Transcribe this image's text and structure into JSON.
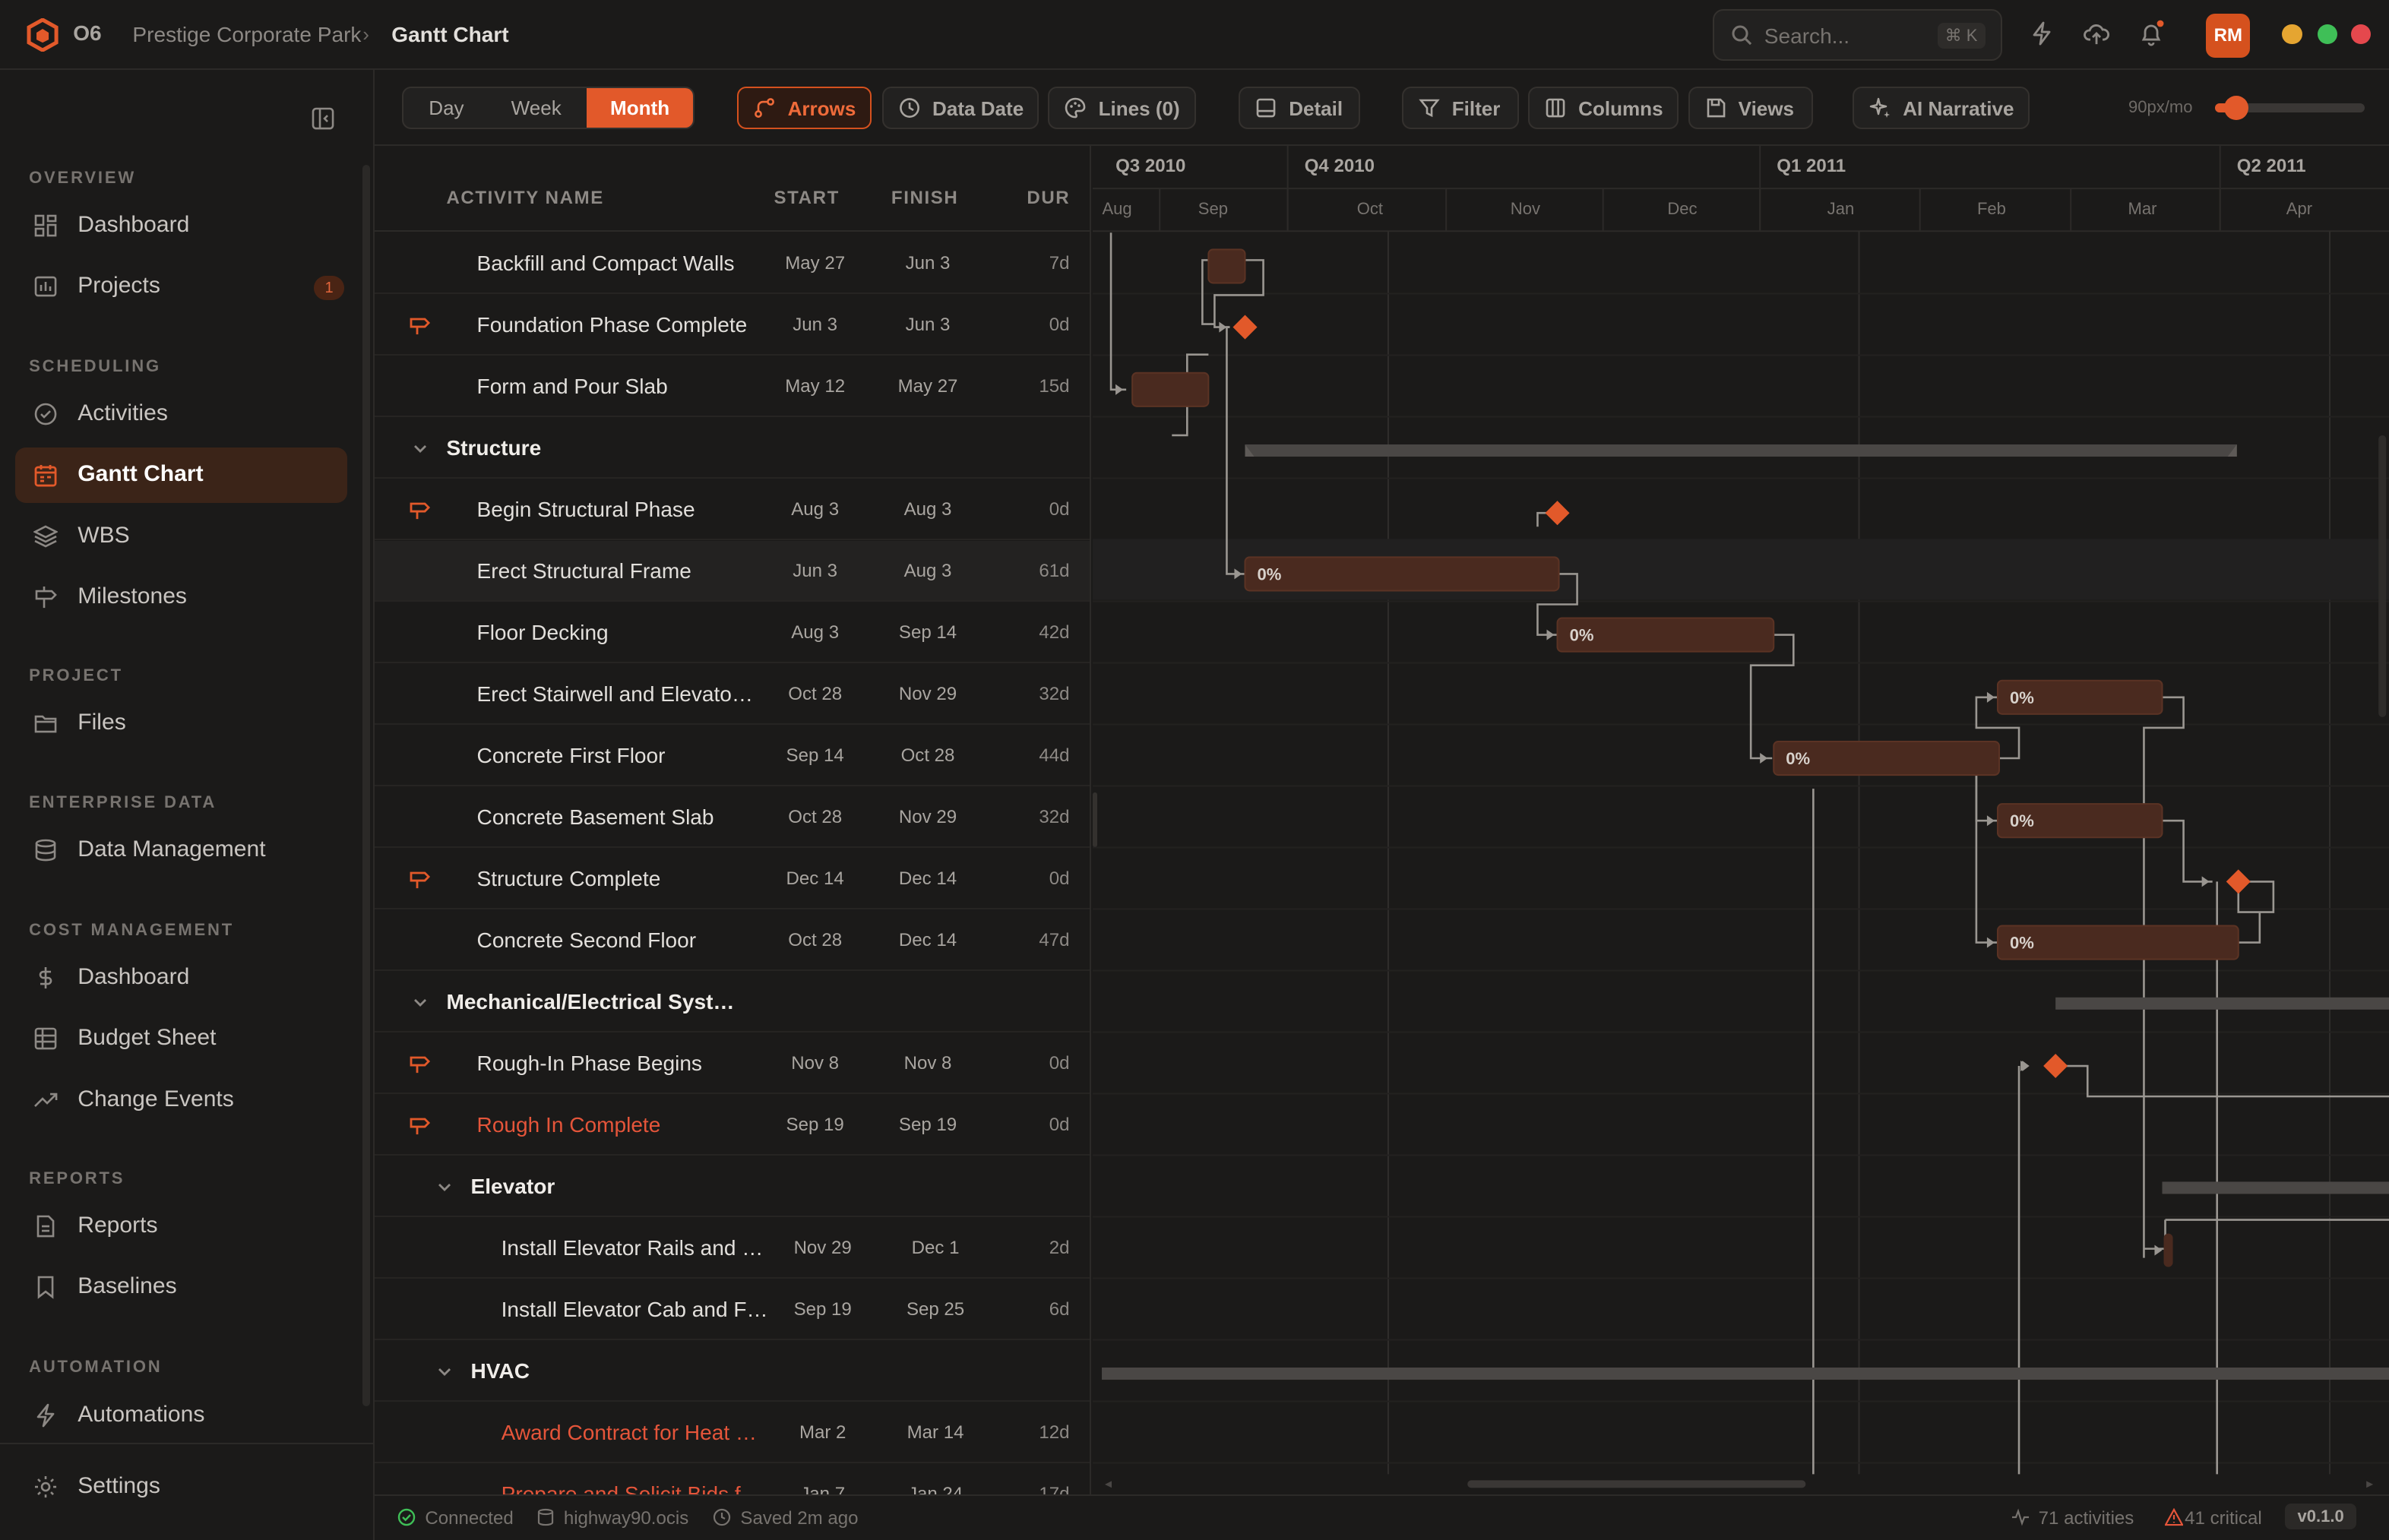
{
  "app": {
    "org": "O6",
    "project": "Prestige Corporate Park",
    "page": "Gantt Chart"
  },
  "header": {
    "search_placeholder": "Search...",
    "search_shortcut": "⌘ K",
    "avatar_initials": "RM",
    "window_dots": [
      "#e5a531",
      "#3fbf57",
      "#e5484d"
    ]
  },
  "sidebar": {
    "sections": [
      "OVERVIEW",
      "SCHEDULING",
      "PROJECT",
      "ENTERPRISE DATA",
      "COST MANAGEMENT",
      "REPORTS",
      "AUTOMATION"
    ],
    "items": [
      {
        "label": "Dashboard",
        "icon": "dashboard-icon"
      },
      {
        "label": "Projects",
        "icon": "projects-icon",
        "badge": "1"
      },
      {
        "label": "Activities",
        "icon": "check-circle-icon"
      },
      {
        "label": "Gantt Chart",
        "icon": "calendar-icon",
        "active": true
      },
      {
        "label": "WBS",
        "icon": "layers-icon"
      },
      {
        "label": "Milestones",
        "icon": "signpost-icon"
      },
      {
        "label": "Files",
        "icon": "folder-icon"
      },
      {
        "label": "Data Management",
        "icon": "database-icon"
      },
      {
        "label": "Dashboard",
        "icon": "dollar-icon"
      },
      {
        "label": "Budget Sheet",
        "icon": "table-icon"
      },
      {
        "label": "Change Events",
        "icon": "trend-icon"
      },
      {
        "label": "Reports",
        "icon": "report-icon"
      },
      {
        "label": "Baselines",
        "icon": "bookmark-icon"
      },
      {
        "label": "Automations",
        "icon": "bolt-icon"
      },
      {
        "label": "Settings",
        "icon": "gear-icon"
      }
    ]
  },
  "toolbar": {
    "scale": [
      "Day",
      "Week",
      "Month"
    ],
    "scale_selected": "Month",
    "arrows": "Arrows",
    "data_date": "Data Date",
    "lines": "Lines (0)",
    "detail": "Detail",
    "filter": "Filter",
    "columns": "Columns",
    "views": "Views",
    "ai": "AI Narrative",
    "zoom_label": "90px/mo",
    "zoom_fraction": 0.08
  },
  "grid": {
    "columns": [
      "ACTIVITY NAME",
      "START",
      "FINISH",
      "DUR"
    ],
    "rows": [
      {
        "name": "Backfill and Compact Walls",
        "start": "May 27",
        "finish": "Jun 3",
        "dur": "7d",
        "level": 1
      },
      {
        "name": "Foundation Phase Complete",
        "start": "Jun 3",
        "finish": "Jun 3",
        "dur": "0d",
        "level": 1,
        "milestone": true
      },
      {
        "name": "Form and Pour Slab",
        "start": "May 12",
        "finish": "May 27",
        "dur": "15d",
        "level": 1
      },
      {
        "name": "Structure",
        "level": 0,
        "group": true
      },
      {
        "name": "Begin Structural Phase",
        "start": "Aug 3",
        "finish": "Aug 3",
        "dur": "0d",
        "level": 1,
        "milestone": true
      },
      {
        "name": "Erect Structural Frame",
        "start": "Jun 3",
        "finish": "Aug 3",
        "dur": "61d",
        "level": 1,
        "selected": true
      },
      {
        "name": "Floor Decking",
        "start": "Aug 3",
        "finish": "Sep 14",
        "dur": "42d",
        "level": 1
      },
      {
        "name": "Erect Stairwell and Elevato…",
        "start": "Oct 28",
        "finish": "Nov 29",
        "dur": "32d",
        "level": 1
      },
      {
        "name": "Concrete First Floor",
        "start": "Sep 14",
        "finish": "Oct 28",
        "dur": "44d",
        "level": 1
      },
      {
        "name": "Concrete Basement Slab",
        "start": "Oct 28",
        "finish": "Nov 29",
        "dur": "32d",
        "level": 1
      },
      {
        "name": "Structure Complete",
        "start": "Dec 14",
        "finish": "Dec 14",
        "dur": "0d",
        "level": 1,
        "milestone": true
      },
      {
        "name": "Concrete Second Floor",
        "start": "Oct 28",
        "finish": "Dec 14",
        "dur": "47d",
        "level": 1
      },
      {
        "name": "Mechanical/Electrical Syst…",
        "level": 0,
        "group": true
      },
      {
        "name": "Rough-In Phase Begins",
        "start": "Nov 8",
        "finish": "Nov 8",
        "dur": "0d",
        "level": 1,
        "milestone": true
      },
      {
        "name": "Rough In Complete",
        "start": "Sep 19",
        "finish": "Sep 19",
        "dur": "0d",
        "level": 1,
        "milestone": true,
        "critical": true
      },
      {
        "name": "Elevator",
        "level": 1,
        "group": true
      },
      {
        "name": "Install Elevator Rails and …",
        "start": "Nov 29",
        "finish": "Dec 1",
        "dur": "2d",
        "level": 2
      },
      {
        "name": "Install Elevator Cab and F…",
        "start": "Sep 19",
        "finish": "Sep 25",
        "dur": "6d",
        "level": 2
      },
      {
        "name": "HVAC",
        "level": 1,
        "group": true
      },
      {
        "name": "Award Contract for Heat …",
        "start": "Mar 2",
        "finish": "Mar 14",
        "dur": "12d",
        "level": 2,
        "critical": true
      },
      {
        "name": "Prepare and Solicit Bids f…",
        "start": "Jan 7",
        "finish": "Jan 24",
        "dur": "17d",
        "level": 2,
        "critical": true
      }
    ]
  },
  "timeline": {
    "quarters": [
      "Q3 2010",
      "Q4 2010",
      "Q1 2011",
      "Q2 2011"
    ],
    "months": [
      "Aug",
      "Sep",
      "Oct",
      "Nov",
      "Dec",
      "Jan",
      "Feb",
      "Mar",
      "Apr"
    ],
    "percent_labels": [
      "0%",
      "0%",
      "0%",
      "0%",
      "0%",
      "0%"
    ]
  },
  "status": {
    "connection": "Connected",
    "database": "highway90.ocis",
    "saved": "Saved 2m ago",
    "activities": "71 activities",
    "critical": "41 critical",
    "version": "v0.1.0"
  },
  "colors": {
    "accent": "#e2592a",
    "bar": "#4a2a1f",
    "critical_text": "#e5553a",
    "summary": "#4a4745"
  }
}
